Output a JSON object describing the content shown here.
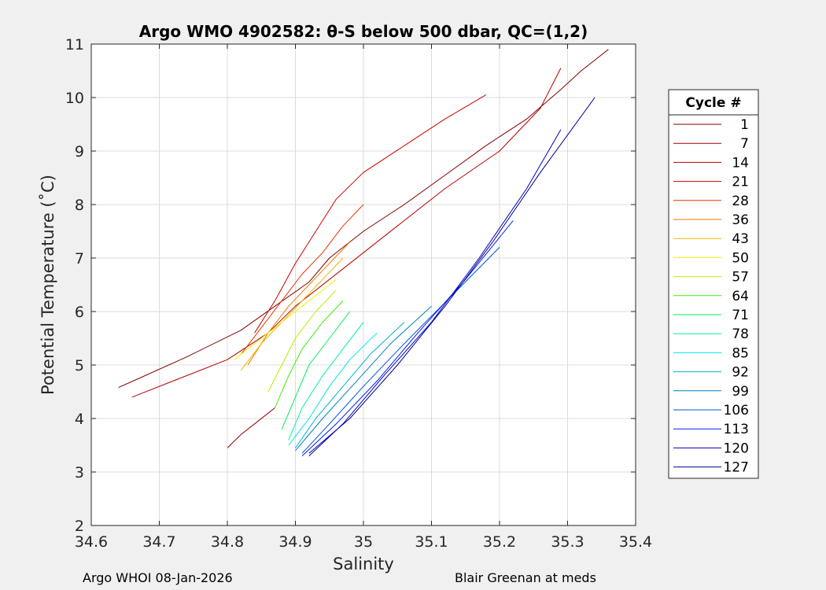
{
  "chart_data": {
    "type": "line",
    "title": "Argo WMO 4902582: θ-S below 500 dbar,  QC=(1,2)",
    "xlabel": "Salinity",
    "ylabel": "Potential Temperature (˚C)",
    "xlim": [
      34.6,
      35.4
    ],
    "ylim": [
      2,
      11
    ],
    "xticks": [
      "34.6",
      "34.7",
      "34.8",
      "34.9",
      "35",
      "35.1",
      "35.2",
      "35.3",
      "35.4"
    ],
    "yticks": [
      "2",
      "3",
      "4",
      "5",
      "6",
      "7",
      "8",
      "9",
      "10",
      "11"
    ],
    "grid": true,
    "legend_title": "Cycle #",
    "legend_position": "right",
    "series": [
      {
        "name": "1",
        "color": "#800000",
        "x": [
          34.64,
          34.67,
          34.74,
          34.82,
          34.87,
          34.92,
          34.95,
          35.0,
          35.06,
          35.12,
          35.18,
          35.24,
          35.29,
          35.32,
          35.36
        ],
        "y": [
          4.58,
          4.75,
          5.15,
          5.65,
          6.1,
          6.55,
          7.0,
          7.5,
          8.0,
          8.55,
          9.1,
          9.6,
          10.15,
          10.5,
          10.9
        ]
      },
      {
        "name": "7",
        "color": "#9a0000",
        "x": [
          34.8,
          34.82,
          34.84,
          34.86,
          34.87
        ],
        "y": [
          3.45,
          3.7,
          3.9,
          4.1,
          4.2
        ]
      },
      {
        "name": "14",
        "color": "#b30000",
        "x": [
          34.66,
          34.72,
          34.8,
          34.86,
          34.9,
          34.95,
          35.0,
          35.05,
          35.12,
          35.2,
          35.26,
          35.29
        ],
        "y": [
          4.4,
          4.7,
          5.1,
          5.6,
          6.1,
          6.6,
          7.1,
          7.6,
          8.3,
          9.0,
          9.8,
          10.55
        ]
      },
      {
        "name": "21",
        "color": "#cc0000",
        "x": [
          34.84,
          34.87,
          34.9,
          34.93,
          34.96,
          35.0,
          35.06,
          35.12,
          35.18
        ],
        "y": [
          5.6,
          6.2,
          6.9,
          7.5,
          8.1,
          8.6,
          9.1,
          9.6,
          10.05
        ]
      },
      {
        "name": "28",
        "color": "#e63300",
        "x": [
          34.82,
          34.85,
          34.88,
          34.91,
          34.94,
          34.97,
          35.0
        ],
        "y": [
          5.2,
          5.7,
          6.2,
          6.7,
          7.1,
          7.6,
          8.0
        ]
      },
      {
        "name": "36",
        "color": "#f07800",
        "x": [
          34.83,
          34.86,
          34.89,
          34.92,
          34.95,
          34.98
        ],
        "y": [
          5.0,
          5.6,
          6.1,
          6.5,
          6.9,
          7.3
        ]
      },
      {
        "name": "43",
        "color": "#f0b400",
        "x": [
          34.82,
          34.85,
          34.88,
          34.91,
          34.94,
          34.97
        ],
        "y": [
          4.9,
          5.4,
          5.8,
          6.2,
          6.6,
          7.0
        ]
      },
      {
        "name": "50",
        "color": "#f0f000",
        "x": [
          34.81,
          34.84,
          34.87,
          34.9,
          34.93,
          34.96
        ],
        "y": [
          5.1,
          5.4,
          5.7,
          6.0,
          6.3,
          6.6
        ]
      },
      {
        "name": "57",
        "color": "#b4f000",
        "x": [
          34.86,
          34.88,
          34.9,
          34.93,
          34.96
        ],
        "y": [
          4.5,
          5.0,
          5.5,
          6.0,
          6.4
        ]
      },
      {
        "name": "64",
        "color": "#3cf000",
        "x": [
          34.87,
          34.89,
          34.91,
          34.94,
          34.97
        ],
        "y": [
          4.2,
          4.8,
          5.3,
          5.8,
          6.2
        ]
      },
      {
        "name": "71",
        "color": "#00f05a",
        "x": [
          34.88,
          34.9,
          34.92,
          34.95,
          34.98
        ],
        "y": [
          3.8,
          4.4,
          5.0,
          5.5,
          6.0
        ]
      },
      {
        "name": "78",
        "color": "#00f0a0",
        "x": [
          34.89,
          34.91,
          34.94,
          34.97,
          35.0
        ],
        "y": [
          3.6,
          4.2,
          4.8,
          5.3,
          5.8
        ]
      },
      {
        "name": "85",
        "color": "#00e6e6",
        "x": [
          34.89,
          34.92,
          34.95,
          34.98,
          35.02
        ],
        "y": [
          3.5,
          4.0,
          4.6,
          5.1,
          5.6
        ]
      },
      {
        "name": "92",
        "color": "#00b4cc",
        "x": [
          34.9,
          34.93,
          34.97,
          35.01,
          35.06
        ],
        "y": [
          3.45,
          4.0,
          4.6,
          5.2,
          5.8
        ]
      },
      {
        "name": "99",
        "color": "#0080c0",
        "x": [
          34.9,
          34.94,
          34.99,
          35.04,
          35.1
        ],
        "y": [
          3.4,
          4.0,
          4.7,
          5.4,
          6.1
        ]
      },
      {
        "name": "106",
        "color": "#0050e0",
        "x": [
          34.91,
          34.95,
          35.0,
          35.06,
          35.13,
          35.2
        ],
        "y": [
          3.35,
          3.9,
          4.6,
          5.4,
          6.3,
          7.2
        ]
      },
      {
        "name": "113",
        "color": "#0020f0",
        "x": [
          34.91,
          34.96,
          35.02,
          35.08,
          35.15,
          35.22
        ],
        "y": [
          3.3,
          3.9,
          4.7,
          5.6,
          6.6,
          7.7
        ]
      },
      {
        "name": "120",
        "color": "#0000c8",
        "x": [
          34.92,
          34.97,
          35.03,
          35.1,
          35.17,
          35.24,
          35.29
        ],
        "y": [
          3.3,
          3.9,
          4.8,
          5.8,
          7.0,
          8.3,
          9.4
        ]
      },
      {
        "name": "127",
        "color": "#000090",
        "x": [
          34.92,
          34.98,
          35.05,
          35.12,
          35.19,
          35.26,
          35.34
        ],
        "y": [
          3.35,
          4.0,
          5.0,
          6.1,
          7.3,
          8.6,
          10.0
        ]
      }
    ]
  },
  "footer": {
    "left": "Argo WHOI 08-Jan-2026",
    "right": "Blair Greenan at meds"
  }
}
